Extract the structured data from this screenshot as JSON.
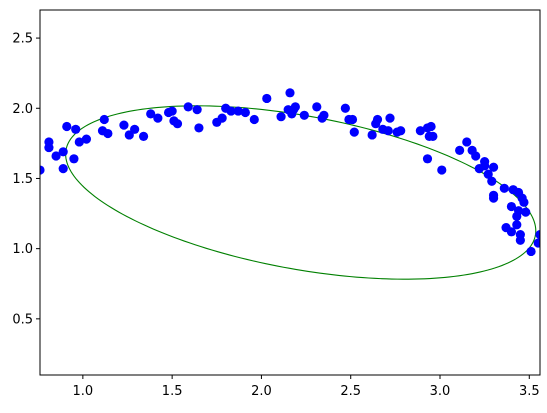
{
  "chart_data": {
    "type": "scatter",
    "title": "",
    "xlabel": "",
    "ylabel": "",
    "xlim": [
      0.76,
      3.56
    ],
    "ylim": [
      0.1,
      2.7
    ],
    "grid": false,
    "xticks": [
      1.0,
      1.5,
      2.0,
      2.5,
      3.0,
      3.5
    ],
    "xtick_labels": [
      "1.0",
      "1.5",
      "2.0",
      "2.5",
      "3.0",
      "3.5"
    ],
    "yticks": [
      0.5,
      1.0,
      1.5,
      2.0,
      2.5
    ],
    "ytick_labels": [
      "0.5",
      "1.0",
      "1.5",
      "2.0",
      "2.5"
    ],
    "points_color": "#0000ff",
    "fit_color": "#008000",
    "points": [
      [
        0.76,
        1.56
      ],
      [
        0.81,
        1.76
      ],
      [
        0.81,
        1.72
      ],
      [
        0.85,
        1.66
      ],
      [
        0.89,
        1.57
      ],
      [
        0.89,
        1.69
      ],
      [
        0.91,
        1.87
      ],
      [
        0.95,
        1.64
      ],
      [
        0.96,
        1.85
      ],
      [
        0.98,
        1.76
      ],
      [
        1.02,
        1.78
      ],
      [
        1.11,
        1.84
      ],
      [
        1.12,
        1.92
      ],
      [
        1.14,
        1.82
      ],
      [
        1.23,
        1.88
      ],
      [
        1.26,
        1.81
      ],
      [
        1.29,
        1.85
      ],
      [
        1.34,
        1.8
      ],
      [
        1.38,
        1.96
      ],
      [
        1.42,
        1.93
      ],
      [
        1.48,
        1.97
      ],
      [
        1.5,
        1.98
      ],
      [
        1.51,
        1.91
      ],
      [
        1.53,
        1.89
      ],
      [
        1.59,
        2.01
      ],
      [
        1.64,
        1.99
      ],
      [
        1.65,
        1.86
      ],
      [
        1.75,
        1.9
      ],
      [
        1.78,
        1.93
      ],
      [
        1.8,
        2.0
      ],
      [
        1.83,
        1.98
      ],
      [
        1.87,
        1.98
      ],
      [
        1.91,
        1.97
      ],
      [
        1.96,
        1.92
      ],
      [
        2.03,
        2.07
      ],
      [
        2.11,
        1.94
      ],
      [
        2.15,
        1.99
      ],
      [
        2.16,
        2.11
      ],
      [
        2.17,
        1.96
      ],
      [
        2.18,
        1.99
      ],
      [
        2.19,
        2.01
      ],
      [
        2.24,
        1.95
      ],
      [
        2.31,
        2.01
      ],
      [
        2.34,
        1.93
      ],
      [
        2.35,
        1.95
      ],
      [
        2.47,
        2.0
      ],
      [
        2.49,
        1.92
      ],
      [
        2.51,
        1.92
      ],
      [
        2.52,
        1.83
      ],
      [
        2.62,
        1.81
      ],
      [
        2.64,
        1.89
      ],
      [
        2.65,
        1.92
      ],
      [
        2.68,
        1.85
      ],
      [
        2.71,
        1.84
      ],
      [
        2.72,
        1.93
      ],
      [
        2.76,
        1.83
      ],
      [
        2.78,
        1.84
      ],
      [
        2.89,
        1.84
      ],
      [
        2.93,
        1.86
      ],
      [
        2.93,
        1.64
      ],
      [
        2.94,
        1.8
      ],
      [
        2.95,
        1.87
      ],
      [
        2.96,
        1.8
      ],
      [
        3.01,
        1.56
      ],
      [
        3.11,
        1.7
      ],
      [
        3.15,
        1.76
      ],
      [
        3.18,
        1.7
      ],
      [
        3.2,
        1.66
      ],
      [
        3.22,
        1.57
      ],
      [
        3.25,
        1.59
      ],
      [
        3.25,
        1.62
      ],
      [
        3.27,
        1.53
      ],
      [
        3.29,
        1.48
      ],
      [
        3.3,
        1.58
      ],
      [
        3.3,
        1.38
      ],
      [
        3.3,
        1.36
      ],
      [
        3.36,
        1.43
      ],
      [
        3.37,
        1.15
      ],
      [
        3.4,
        1.12
      ],
      [
        3.4,
        1.3
      ],
      [
        3.41,
        1.42
      ],
      [
        3.43,
        1.23
      ],
      [
        3.43,
        1.17
      ],
      [
        3.44,
        1.27
      ],
      [
        3.44,
        1.4
      ],
      [
        3.45,
        1.1
      ],
      [
        3.45,
        1.06
      ],
      [
        3.46,
        1.36
      ],
      [
        3.47,
        1.33
      ],
      [
        3.48,
        1.26
      ],
      [
        3.51,
        0.98
      ],
      [
        3.55,
        1.04
      ],
      [
        3.56,
        1.1
      ]
    ],
    "fit_ellipse": {
      "center": [
        2.22,
        1.4
      ],
      "semi_major": 1.35,
      "semi_minor": 0.54,
      "angle_deg": -14
    }
  }
}
